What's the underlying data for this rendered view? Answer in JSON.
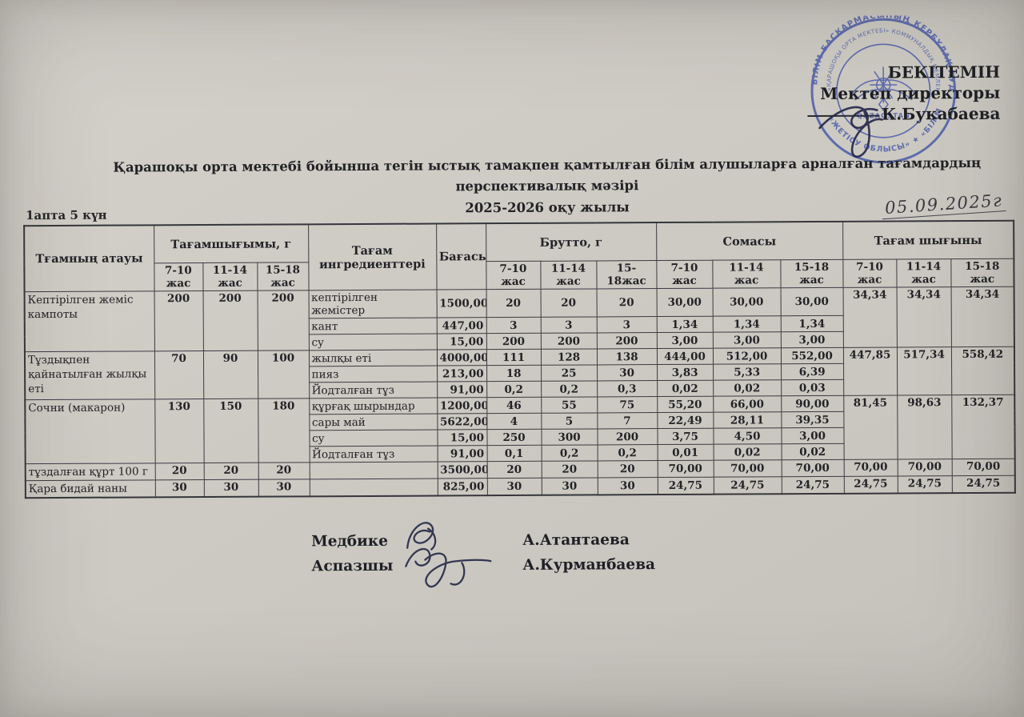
{
  "page": {
    "week_label": "1апта 5 күн",
    "date_handwritten": "05.09.2025г",
    "title_line1": "Қарашоқы орта мектебі бойынша тегін ыстық тамақпен қамтылған білім алушыларға арналған тағамдардың перспективалық мәзірі",
    "title_line2": "2025-2026 оқу жылы"
  },
  "approval": {
    "line1": "БЕКІТЕМІН",
    "line2": "Мектеп директоры",
    "line3": "К.Букабаева"
  },
  "stamp": {
    "outer_text_top": "БІЛІМ БАСҚАРМАСЫНЫҢ КЕРБҰЛАҚ АУДАНЫ",
    "outer_text_bottom": "«ЖЕТІСУ ОБЛЫСЫ» ★ «БІЛІМ БӨЛІМІ»",
    "inner_text": "«ҚАРАШОҚЫ ОРТА МЕКТЕБІ» КОММУНАЛДЫҚ МЕМЛЕКЕТТІК",
    "center_text": "QAZAQSTAN",
    "color": "#4052a8"
  },
  "table": {
    "columns": {
      "name": "Тғамның атауы",
      "portion_group": "Тағамшығымы, г",
      "ingredients": "Тағам ингредиенттері",
      "price": "Бағасы",
      "brutto_group": "Брутто, г",
      "sum_group": "Сомасы",
      "output_group": "Тағам шығыны",
      "age_portion": [
        "7-10 жас",
        "11-14 жас",
        "15-18 жас"
      ],
      "age_brutto": [
        "7-10 жас",
        "11-14 жас",
        "15-18жас"
      ],
      "age_sum": [
        "7-10 жас",
        "11-14 жас",
        "15-18 жас"
      ],
      "age_output": [
        "7-10 жас",
        "11-14 жас",
        "15-18 жас"
      ]
    },
    "dishes": [
      {
        "name": "Кептірілген жеміс кампоты",
        "portions": [
          "200",
          "200",
          "200"
        ],
        "output": [
          "34,34",
          "34,34",
          "34,34"
        ],
        "ingredients": [
          {
            "name": "кептірілген жемістер",
            "price": "1500,00",
            "brutto": [
              "20",
              "20",
              "20"
            ],
            "sum": [
              "30,00",
              "30,00",
              "30,00"
            ]
          },
          {
            "name": "кант",
            "price": "447,00",
            "brutto": [
              "3",
              "3",
              "3"
            ],
            "sum": [
              "1,34",
              "1,34",
              "1,34"
            ]
          },
          {
            "name": "су",
            "price": "15,00",
            "brutto": [
              "200",
              "200",
              "200"
            ],
            "sum": [
              "3,00",
              "3,00",
              "3,00"
            ]
          }
        ]
      },
      {
        "name": "Тұздықпен қайнатылған жылқы еті",
        "portions": [
          "70",
          "90",
          "100"
        ],
        "output": [
          "447,85",
          "517,34",
          "558,42"
        ],
        "ingredients": [
          {
            "name": "жылқы еті",
            "price": "4000,00",
            "brutto": [
              "111",
              "128",
              "138"
            ],
            "sum": [
              "444,00",
              "512,00",
              "552,00"
            ]
          },
          {
            "name": "пияз",
            "price": "213,00",
            "brutto": [
              "18",
              "25",
              "30"
            ],
            "sum": [
              "3,83",
              "5,33",
              "6,39"
            ]
          },
          {
            "name": "Йодталған тұз",
            "price": "91,00",
            "brutto": [
              "0,2",
              "0,2",
              "0,3"
            ],
            "sum": [
              "0,02",
              "0,02",
              "0,03"
            ]
          }
        ]
      },
      {
        "name": "Сочни (макарон)",
        "portions": [
          "130",
          "150",
          "180"
        ],
        "output": [
          "81,45",
          "98,63",
          "132,37"
        ],
        "ingredients": [
          {
            "name": "құрғақ шырындар",
            "price": "1200,00",
            "brutto": [
              "46",
              "55",
              "75"
            ],
            "sum": [
              "55,20",
              "66,00",
              "90,00"
            ]
          },
          {
            "name": "сары май",
            "price": "5622,00",
            "brutto": [
              "4",
              "5",
              "7"
            ],
            "sum": [
              "22,49",
              "28,11",
              "39,35"
            ]
          },
          {
            "name": "су",
            "price": "15,00",
            "brutto": [
              "250",
              "300",
              "200"
            ],
            "sum": [
              "3,75",
              "4,50",
              "3,00"
            ]
          },
          {
            "name": "Йодталған тұз",
            "price": "91,00",
            "brutto": [
              "0,1",
              "0,2",
              "0,2"
            ],
            "sum": [
              "0,01",
              "0,02",
              "0,02"
            ]
          }
        ]
      },
      {
        "name": "тұздалған құрт 100 г",
        "portions": [
          "20",
          "20",
          "20"
        ],
        "output": [
          "70,00",
          "70,00",
          "70,00"
        ],
        "ingredients": [
          {
            "name": "",
            "price": "3500,00",
            "brutto": [
              "20",
              "20",
              "20"
            ],
            "sum": [
              "70,00",
              "70,00",
              "70,00"
            ]
          }
        ]
      },
      {
        "name": "Қара бидай наны",
        "portions": [
          "30",
          "30",
          "30"
        ],
        "output": [
          "24,75",
          "24,75",
          "24,75"
        ],
        "ingredients": [
          {
            "name": "",
            "price": "825,00",
            "brutto": [
              "30",
              "30",
              "30"
            ],
            "sum": [
              "24,75",
              "24,75",
              "24,75"
            ]
          }
        ]
      }
    ]
  },
  "signatures": [
    {
      "role": "Медбике",
      "name": "А.Атантаева"
    },
    {
      "role": "Аспазшы",
      "name": "А.Курманбаева"
    }
  ]
}
